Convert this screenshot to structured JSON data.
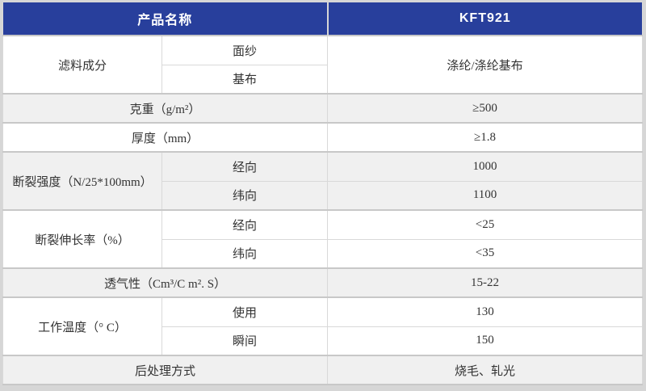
{
  "colors": {
    "accent": "#283f9c",
    "header-text": "#ffffff",
    "row-gray": "#f0f0f0",
    "border": "#d9d9d9",
    "border-strong": "#c8c8c8",
    "page-bg": "#d6d6d6",
    "text": "#333333"
  },
  "header": {
    "product_label": "产品名称",
    "product_value": "KFT921"
  },
  "rows": [
    {
      "group": "滤料成分",
      "shade": "white",
      "subs": [
        {
          "label": "面纱"
        },
        {
          "label": "基布"
        }
      ],
      "value": "涤纶/涤纶基布"
    },
    {
      "group": "克重（g/m²）",
      "shade": "gray",
      "value": "≥500"
    },
    {
      "group": "厚度（mm）",
      "shade": "white",
      "value": "≥1.8"
    },
    {
      "group": "断裂强度（N/25*100mm）",
      "shade": "gray",
      "subs": [
        {
          "label": "经向",
          "value": "1000"
        },
        {
          "label": "纬向",
          "value": "1100"
        }
      ]
    },
    {
      "group": "断裂伸长率（%）",
      "shade": "white",
      "subs": [
        {
          "label": "经向",
          "value": "<25"
        },
        {
          "label": "纬向",
          "value": "<35"
        }
      ]
    },
    {
      "group": "透气性（Cm³/C m². S）",
      "shade": "gray",
      "value": "15-22"
    },
    {
      "group": "工作温度（° C）",
      "shade": "white",
      "subs": [
        {
          "label": "使用",
          "value": "130"
        },
        {
          "label": "瞬间",
          "value": "150"
        }
      ]
    },
    {
      "group": "后处理方式",
      "shade": "gray",
      "value": "烧毛、轧光"
    }
  ]
}
